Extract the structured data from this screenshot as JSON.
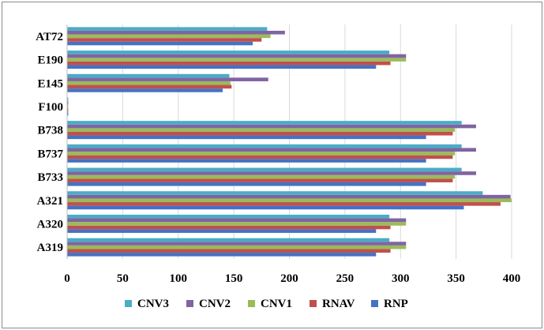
{
  "chart_data": {
    "type": "bar",
    "orientation": "horizontal",
    "title": "",
    "xlabel": "",
    "ylabel": "",
    "xlim": [
      0,
      400
    ],
    "xticks": [
      0,
      50,
      100,
      150,
      200,
      250,
      300,
      350,
      400
    ],
    "grid": "vertical",
    "legend_position": "bottom",
    "categories": [
      "A319",
      "A320",
      "A321",
      "B733",
      "B737",
      "B738",
      "F100",
      "E145",
      "E190",
      "AT72"
    ],
    "series": [
      {
        "name": "RNP",
        "color": "#4472C4",
        "values": [
          278,
          278,
          357,
          323,
          323,
          323,
          1,
          140,
          278,
          167
        ]
      },
      {
        "name": "RNAV",
        "color": "#C0504D",
        "values": [
          291,
          291,
          390,
          347,
          347,
          347,
          1,
          148,
          291,
          175
        ]
      },
      {
        "name": "CNV1",
        "color": "#9BBB59",
        "values": [
          305,
          305,
          400,
          349,
          349,
          349,
          1,
          147,
          305,
          183
        ]
      },
      {
        "name": "CNV2",
        "color": "#8064A2",
        "values": [
          305,
          305,
          399,
          368,
          368,
          368,
          1,
          181,
          305,
          196
        ]
      },
      {
        "name": "CNV3",
        "color": "#4BACC6",
        "values": [
          290,
          290,
          374,
          355,
          355,
          355,
          1,
          146,
          290,
          180
        ]
      }
    ],
    "legend_order": [
      "CNV3",
      "CNV2",
      "CNV1",
      "RNAV",
      "RNP"
    ]
  }
}
